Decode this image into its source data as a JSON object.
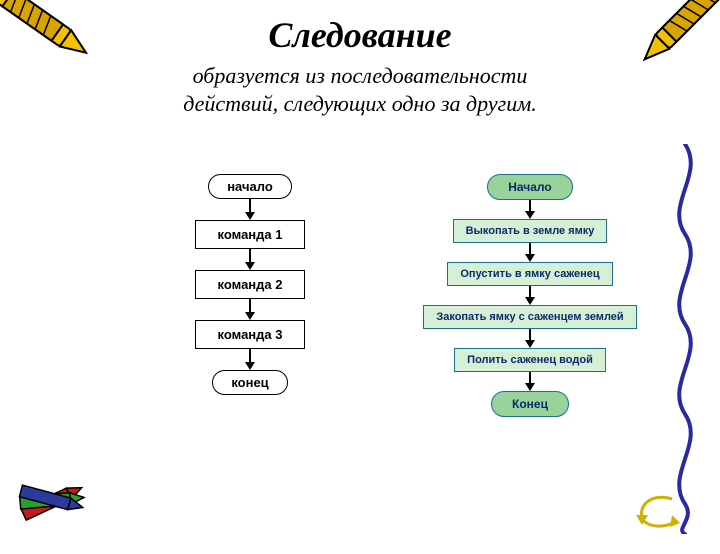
{
  "title": "Следование",
  "subtitle_line1": "образуется из последовательности",
  "subtitle_line2": "действий, следующих одно за другим.",
  "left_flow": {
    "terminal_style": {
      "bg": "#ffffff",
      "border": "#000000",
      "text": "#000000",
      "fontsize": 13,
      "padding": "4px 18px"
    },
    "process_style": {
      "bg": "#ffffff",
      "border": "#000000",
      "text": "#000000",
      "fontsize": 13,
      "padding": "6px 22px"
    },
    "arrow_len": 14,
    "nodes": [
      {
        "type": "terminal",
        "label": "начало"
      },
      {
        "type": "process",
        "label": "команда 1"
      },
      {
        "type": "process",
        "label": "команда 2"
      },
      {
        "type": "process",
        "label": "команда 3"
      },
      {
        "type": "terminal",
        "label": "конец"
      }
    ]
  },
  "right_flow": {
    "terminal_style": {
      "bg": "#97d39b",
      "border": "#1d6f8f",
      "text": "#0a2a6a",
      "fontsize": 12,
      "padding": "5px 20px"
    },
    "process_style": {
      "bg": "#d6f0d6",
      "border": "#1d6f8f",
      "text": "#0a2a6a",
      "fontsize": 11,
      "padding": "5px 12px"
    },
    "arrow_len": 12,
    "nodes": [
      {
        "type": "terminal",
        "label": "Начало"
      },
      {
        "type": "process",
        "label": "Выкопать в земле ямку"
      },
      {
        "type": "process",
        "label": "Опустить в ямку саженец"
      },
      {
        "type": "process",
        "label": "Закопать ямку с саженцем землей"
      },
      {
        "type": "process",
        "label": "Полить саженец водой"
      },
      {
        "type": "terminal",
        "label": "Конец"
      }
    ]
  },
  "decor": {
    "crayon_yellow": "#f2c200",
    "crayon_wrap": "#d9a400",
    "crayon_red": "#c91a1a",
    "crayon_blue": "#2a3aa0",
    "crayon_green": "#2aa02a",
    "squiggle": "#2a2aa0",
    "curve_arrow": "#d0b000"
  }
}
